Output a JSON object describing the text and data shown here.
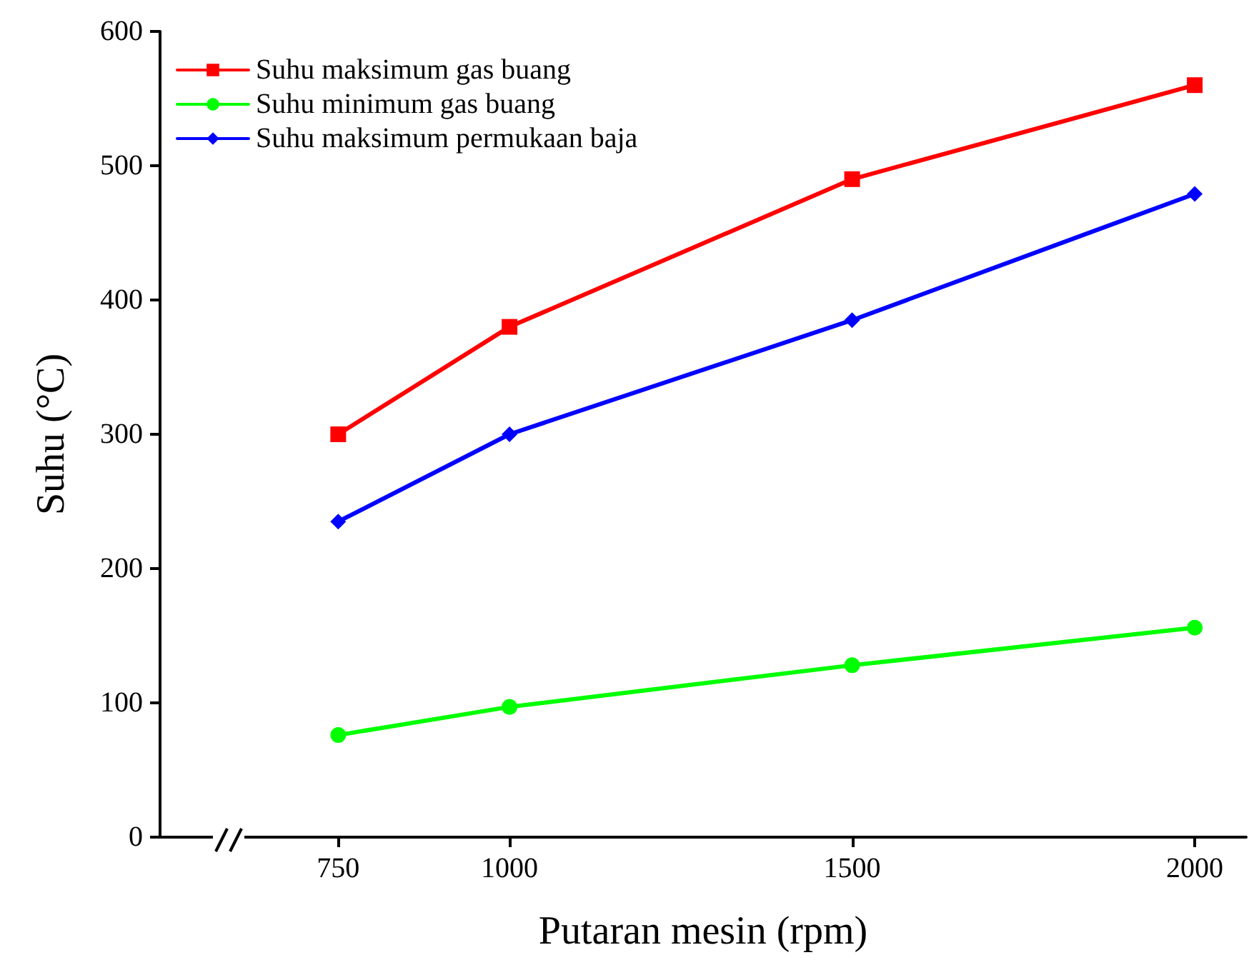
{
  "chart_data": {
    "type": "line",
    "xlabel": "Putaran mesin (rpm)",
    "ylabel": "Suhu (°C)",
    "x": [
      750,
      1000,
      1500,
      2000
    ],
    "xlim": [
      490,
      2075
    ],
    "xticks": [
      750,
      1000,
      1500,
      2000
    ],
    "ylim": [
      0,
      600
    ],
    "yticks": [
      0,
      100,
      200,
      300,
      400,
      500,
      600
    ],
    "grid": false,
    "legend": "top left",
    "line_style": "solid",
    "series": [
      {
        "name": "Suhu maksimum gas buang",
        "color": "#ff0000",
        "marker": "square",
        "values": [
          300,
          380,
          490,
          560
        ]
      },
      {
        "name": "Suhu minimum gas buang",
        "color": "#00ff00",
        "marker": "circle",
        "values": [
          76,
          97,
          128,
          156
        ]
      },
      {
        "name": "Suhu maksimum permukaan baja",
        "color": "#0000ff",
        "marker": "diamond",
        "values": [
          235,
          300,
          385,
          479
        ]
      }
    ]
  }
}
